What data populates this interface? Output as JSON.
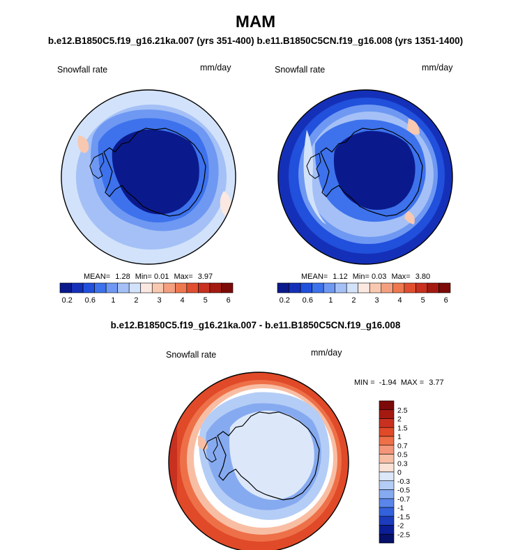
{
  "header": {
    "title": "MAM",
    "subtitle": "b.e12.B1850C5.f19_g16.21ka.007 (yrs 351-400) b.e11.B1850C5CN.f19_g16.008 (yrs 1351-1400)",
    "diff_title": "b.e12.B1850C5.f19_g16.21ka.007 - b.e11.B1850C5CN.f19_g16.008"
  },
  "chart_data": [
    {
      "type": "heatmap",
      "projection": "south-polar-stereographic",
      "variable": "Snowfall rate",
      "units": "mm/day",
      "case": "b.e12.B1850C5.f19_g16.21ka.007 (yrs 351-400)",
      "stats": {
        "mean_label": "MEAN=",
        "mean": "1.28",
        "min_label": "Min=",
        "min": "0.01",
        "max_label": "Max=",
        "max": "3.97"
      },
      "colorbar": {
        "orientation": "horizontal",
        "levels": [
          "0.2",
          "0.6",
          "1",
          "2",
          "3",
          "4",
          "5",
          "6"
        ],
        "colors": [
          "#0a1a8c",
          "#1530b8",
          "#2050dc",
          "#3d72ec",
          "#6e98f2",
          "#a4c0f6",
          "#d2e2fa",
          "#fbe8e0",
          "#f8c8b0",
          "#f4a080",
          "#ee7850",
          "#e05030",
          "#c83020",
          "#a41a10",
          "#7c0a08"
        ]
      }
    },
    {
      "type": "heatmap",
      "projection": "south-polar-stereographic",
      "variable": "Snowfall rate",
      "units": "mm/day",
      "case": "b.e11.B1850C5CN.f19_g16.008 (yrs 1351-1400)",
      "stats": {
        "mean_label": "MEAN=",
        "mean": "1.12",
        "min_label": "Min=",
        "min": "0.03",
        "max_label": "Max=",
        "max": "3.80"
      },
      "colorbar": {
        "orientation": "horizontal",
        "levels": [
          "0.2",
          "0.6",
          "1",
          "2",
          "3",
          "4",
          "5",
          "6"
        ],
        "colors": [
          "#0a1a8c",
          "#1530b8",
          "#2050dc",
          "#3d72ec",
          "#6e98f2",
          "#a4c0f6",
          "#d2e2fa",
          "#fbe8e0",
          "#f8c8b0",
          "#f4a080",
          "#ee7850",
          "#e05030",
          "#c83020",
          "#a41a10",
          "#7c0a08"
        ]
      }
    },
    {
      "type": "heatmap",
      "projection": "south-polar-stereographic",
      "variable": "Snowfall rate",
      "units": "mm/day",
      "case": "difference",
      "stats": {
        "min_label": "MIN =",
        "min": "-1.94",
        "max_label": "MAX =",
        "max": "3.77"
      },
      "colorbar": {
        "orientation": "vertical",
        "levels": [
          "2.5",
          "2",
          "1.5",
          "1",
          "0.7",
          "0.5",
          "0.3",
          "0",
          "-0.3",
          "-0.5",
          "-0.7",
          "-1",
          "-1.5",
          "-2",
          "-2.5"
        ],
        "colors": [
          "#7c0a08",
          "#a41a10",
          "#c83020",
          "#e04a28",
          "#ee7048",
          "#f4967a",
          "#f8bea4",
          "#fbe2d6",
          "#dce8fa",
          "#b4cdf6",
          "#86aaf0",
          "#5a86ea",
          "#3462dc",
          "#1c3cbc",
          "#0c1e96",
          "#061068"
        ]
      }
    }
  ]
}
